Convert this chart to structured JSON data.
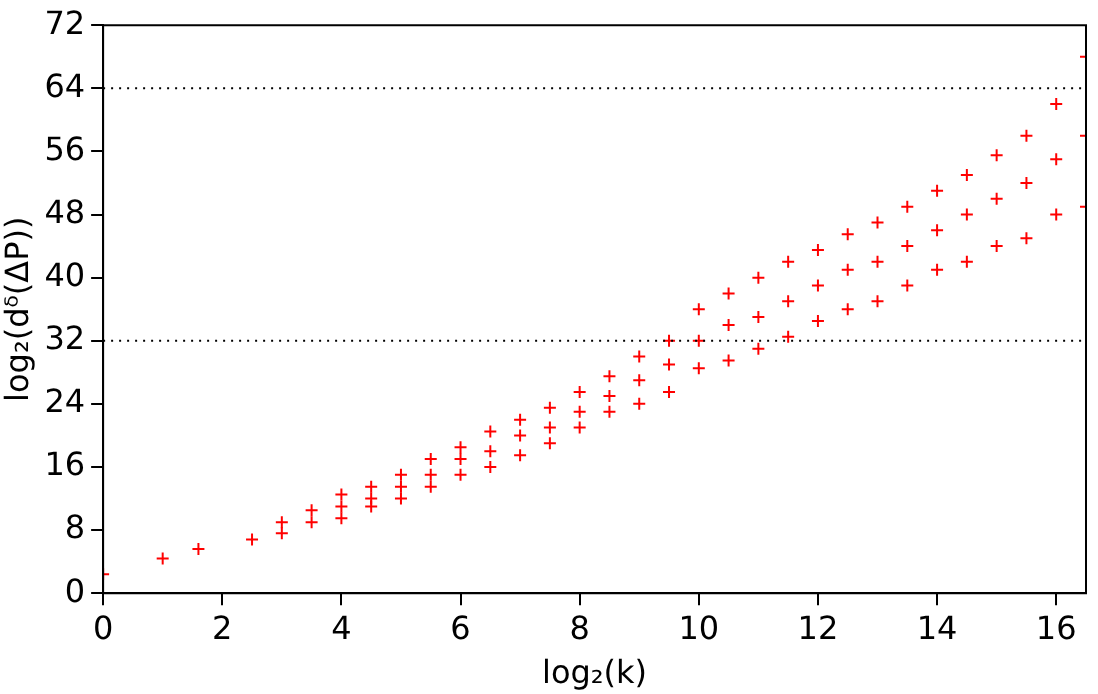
{
  "chart_data": {
    "type": "scatter",
    "xlabel": "log₂(k)",
    "ylabel": "log₂(dᵟ(ΔP))",
    "series": [
      {
        "color": "#ff0000",
        "x": [
          0,
          1,
          1.6,
          2.5,
          3,
          3,
          3.5,
          3.5,
          4,
          4,
          4,
          4.5,
          4.5,
          4.5,
          5,
          5,
          5,
          5.5,
          5.5,
          5.5,
          6,
          6,
          6,
          6.5,
          6.5,
          6.5,
          7,
          7,
          7,
          7.5,
          7.5,
          7.5,
          8,
          8,
          8,
          8.5,
          8.5,
          8.5,
          9,
          9,
          9,
          9.5,
          9.5,
          9.5,
          10,
          10,
          10,
          10.5,
          10.5,
          10.5,
          11,
          11,
          11,
          11.5,
          11.5,
          11.5,
          12,
          12,
          12,
          12.5,
          12.5,
          12.5,
          13,
          13,
          13,
          13.5,
          13.5,
          13.5,
          14,
          14,
          14,
          14.5,
          14.5,
          14.5,
          15,
          15,
          15,
          15.5,
          15.5,
          15.5,
          16,
          16,
          16,
          16.5,
          16.5,
          16.5
        ],
        "values": [
          2.4,
          4.4,
          5.6,
          6.8,
          7.6,
          9,
          9,
          10.5,
          9.5,
          11,
          12.5,
          11,
          12,
          13.5,
          12,
          13.5,
          15,
          13.5,
          15,
          17,
          15,
          17,
          18.5,
          16,
          18,
          20.5,
          17.5,
          20,
          22,
          19,
          21,
          23.5,
          21,
          23,
          25.5,
          23,
          25,
          27.5,
          24,
          27,
          30,
          25.5,
          29,
          32,
          28.5,
          32,
          36,
          29.5,
          34,
          38,
          31,
          35,
          40,
          32.5,
          37,
          42,
          34.5,
          39,
          43.5,
          36,
          41,
          45.5,
          37,
          42,
          47,
          39,
          44,
          49,
          41,
          46,
          51,
          42,
          48,
          53,
          44,
          50,
          55.5,
          45,
          52,
          58,
          48,
          55,
          62,
          49,
          58,
          68
        ]
      }
    ],
    "xlim": [
      0,
      16.5
    ],
    "xticks": [
      0,
      2,
      4,
      6,
      8,
      10,
      12,
      14,
      16
    ],
    "ylim": [
      0,
      72
    ],
    "yticks": [
      0,
      8,
      16,
      24,
      32,
      40,
      48,
      56,
      64,
      72
    ],
    "ref_lines": [
      {
        "axis": "y",
        "value": 32,
        "line_style": "dotted"
      },
      {
        "axis": "y",
        "value": 64,
        "line_style": "dotted"
      }
    ],
    "marker": "cross",
    "grid": false,
    "legend": false
  }
}
